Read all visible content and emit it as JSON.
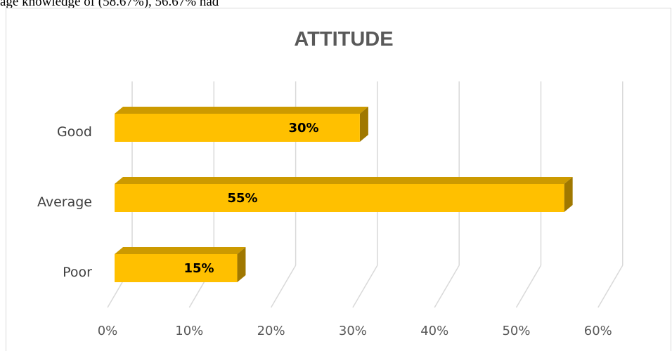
{
  "document": {
    "top_text": "age knowledge of (58.67%), 56.67% had"
  },
  "chart_data": {
    "type": "bar",
    "orientation": "horizontal",
    "title": "ATTITUDE",
    "categories": [
      "Good",
      "Average",
      "Poor"
    ],
    "values": [
      30,
      55,
      15
    ],
    "value_labels": [
      "30%",
      "55%",
      "15%"
    ],
    "xticks": [
      "0%",
      "10%",
      "20%",
      "30%",
      "40%",
      "50%",
      "60%"
    ],
    "xlim": [
      0,
      60
    ],
    "xlabel": "",
    "ylabel": "",
    "grid": true,
    "legend": "none",
    "style": "3d",
    "colors": {
      "bar_front": "#ffc000",
      "bar_top": "#cc9a00",
      "bar_side": "#a07800",
      "grid": "#d9d9d9"
    }
  }
}
